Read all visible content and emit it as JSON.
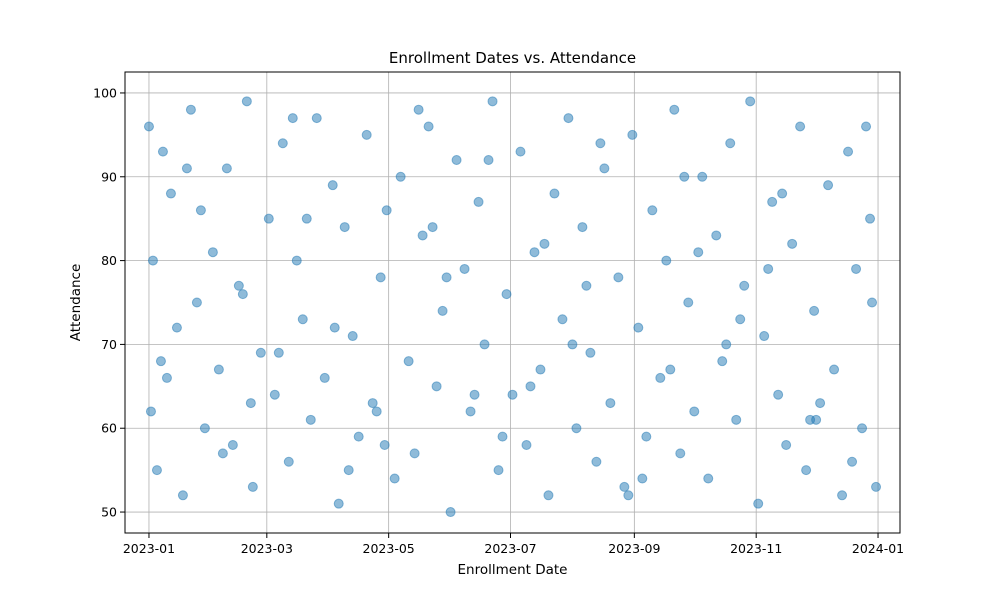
{
  "chart_data": {
    "type": "scatter",
    "title": "Enrollment Dates vs. Attendance",
    "xlabel": "Enrollment Date",
    "ylabel": "Attendance",
    "x_axis_type": "date",
    "xlim": [
      "2022-12-20",
      "2024-01-12"
    ],
    "ylim": [
      47.5,
      102.5
    ],
    "xticks": [
      "2023-01-01",
      "2023-03-01",
      "2023-05-01",
      "2023-07-01",
      "2023-09-01",
      "2023-11-01",
      "2024-01-01"
    ],
    "xtick_labels": [
      "2023-01",
      "2023-03",
      "2023-05",
      "2023-07",
      "2023-09",
      "2023-11",
      "2024-01"
    ],
    "yticks": [
      50,
      60,
      70,
      80,
      90,
      100
    ],
    "ytick_labels": [
      "50",
      "60",
      "70",
      "80",
      "90",
      "100"
    ],
    "grid": true,
    "marker_color": "#1f77b4",
    "marker_alpha": 0.5,
    "x": [
      "2023-01-01",
      "2023-01-02",
      "2023-01-05",
      "2023-01-08",
      "2023-01-12",
      "2023-01-15",
      "2023-01-18",
      "2023-01-22",
      "2023-01-25",
      "2023-01-29",
      "2023-02-02",
      "2023-02-05",
      "2023-02-09",
      "2023-02-12",
      "2023-02-15",
      "2023-02-19",
      "2023-02-22",
      "2023-02-26",
      "2023-03-02",
      "2023-03-05",
      "2023-03-09",
      "2023-03-12",
      "2023-03-16",
      "2023-03-19",
      "2023-03-23",
      "2023-03-26",
      "2023-03-30",
      "2023-04-03",
      "2023-04-06",
      "2023-04-09",
      "2023-04-13",
      "2023-04-16",
      "2023-04-20",
      "2023-04-23",
      "2023-04-27",
      "2023-04-30",
      "2023-05-04",
      "2023-05-07",
      "2023-05-11",
      "2023-05-14",
      "2023-05-18",
      "2023-05-21",
      "2023-05-25",
      "2023-05-28",
      "2023-06-01",
      "2023-06-04",
      "2023-06-08",
      "2023-06-11",
      "2023-06-15",
      "2023-06-18",
      "2023-06-22",
      "2023-06-25",
      "2023-06-29",
      "2023-07-02",
      "2023-07-06",
      "2023-07-09",
      "2023-07-13",
      "2023-07-16",
      "2023-07-20",
      "2023-07-23",
      "2023-07-27",
      "2023-07-30",
      "2023-08-03",
      "2023-08-06",
      "2023-08-10",
      "2023-08-13",
      "2023-08-17",
      "2023-08-20",
      "2023-08-24",
      "2023-08-27",
      "2023-08-31",
      "2023-09-03",
      "2023-09-07",
      "2023-09-10",
      "2023-09-14",
      "2023-09-17",
      "2023-09-21",
      "2023-09-24",
      "2023-09-28",
      "2023-10-01",
      "2023-10-05",
      "2023-10-08",
      "2023-10-12",
      "2023-10-15",
      "2023-10-19",
      "2023-10-22",
      "2023-10-26",
      "2023-10-29",
      "2023-11-02",
      "2023-11-05",
      "2023-11-09",
      "2023-11-12",
      "2023-11-16",
      "2023-11-19",
      "2023-11-23",
      "2023-11-26",
      "2023-11-30",
      "2023-12-03",
      "2023-12-07",
      "2023-12-10",
      "2023-12-14",
      "2023-12-17",
      "2023-12-21",
      "2023-12-24",
      "2023-12-28",
      "2023-12-31",
      "2023-01-03",
      "2023-01-10",
      "2023-01-20",
      "2023-02-07",
      "2023-02-17",
      "2023-03-07",
      "2023-03-21",
      "2023-04-11",
      "2023-04-25",
      "2023-05-16",
      "2023-05-30",
      "2023-06-13",
      "2023-06-27",
      "2023-07-18",
      "2023-08-01",
      "2023-08-15",
      "2023-08-29",
      "2023-09-19",
      "2023-10-03",
      "2023-10-24",
      "2023-11-14",
      "2023-11-28",
      "2023-12-19",
      "2023-12-29",
      "2023-01-07",
      "2023-01-27",
      "2023-02-21",
      "2023-03-14",
      "2023-04-04",
      "2023-04-29",
      "2023-05-23",
      "2023-06-20",
      "2023-07-11",
      "2023-08-08",
      "2023-09-05",
      "2023-09-26",
      "2023-10-17",
      "2023-11-07",
      "2023-12-01",
      "2023-12-26"
    ],
    "y": [
      96,
      62,
      55,
      93,
      88,
      72,
      52,
      98,
      75,
      60,
      81,
      67,
      91,
      58,
      77,
      99,
      53,
      69,
      85,
      64,
      94,
      56,
      80,
      73,
      61,
      97,
      66,
      89,
      51,
      84,
      71,
      59,
      95,
      63,
      78,
      86,
      54,
      90,
      68,
      57,
      83,
      96,
      65,
      74,
      50,
      92,
      79,
      62,
      87,
      70,
      99,
      55,
      76,
      64,
      93,
      58,
      81,
      67,
      52,
      88,
      73,
      97,
      60,
      84,
      69,
      56,
      91,
      63,
      78,
      53,
      95,
      72,
      59,
      86,
      66,
      80,
      98,
      57,
      75,
      62,
      90,
      54,
      83,
      68,
      94,
      61,
      77,
      99,
      51,
      71,
      87,
      64,
      58,
      82,
      96,
      55,
      74,
      63,
      89,
      67,
      52,
      93,
      79,
      60,
      85,
      53,
      80,
      66,
      91,
      57,
      76,
      69,
      85,
      55,
      62,
      98,
      78,
      64,
      59,
      82,
      70,
      94,
      52,
      67,
      81,
      73,
      88,
      61,
      56,
      75,
      68,
      86,
      63,
      97,
      72,
      58,
      84,
      92,
      65,
      77,
      54,
      90,
      70,
      79,
      61,
      96
    ]
  }
}
